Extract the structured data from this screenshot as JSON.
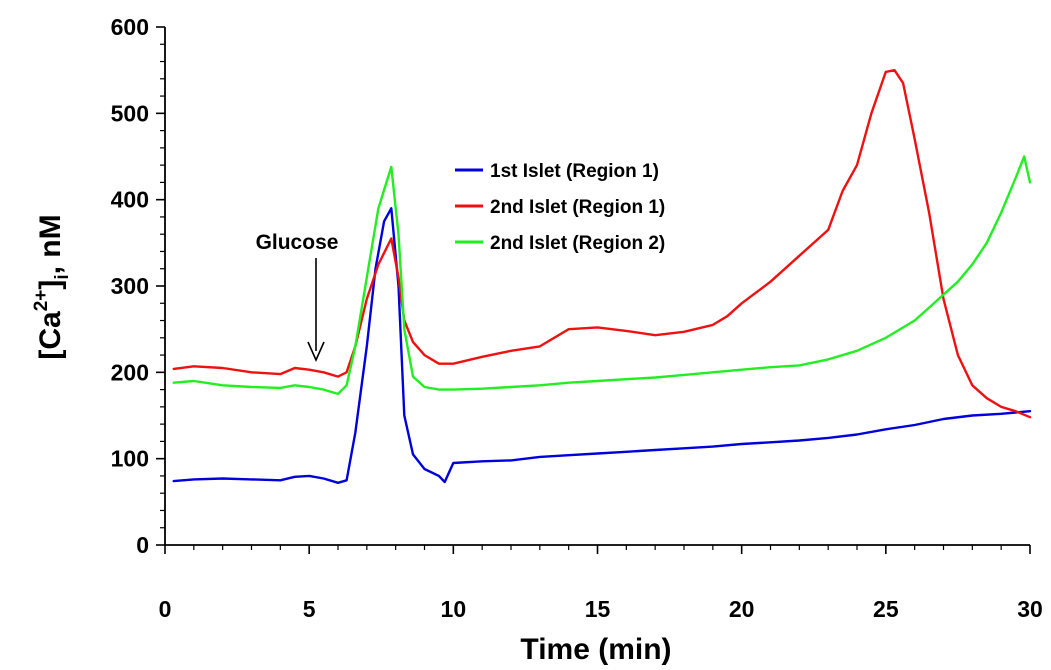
{
  "chart_data": {
    "type": "line",
    "xlabel": "Time (min)",
    "ylabel": {
      "prefix": "[Ca",
      "sup": "2+",
      "close": "]",
      "sub": "i",
      "suffix": ", nM"
    },
    "xlim": [
      0,
      30
    ],
    "ylim": [
      0,
      600
    ],
    "x_ticks": [
      "0",
      "5",
      "10",
      "15",
      "20",
      "25",
      "30"
    ],
    "y_ticks": [
      "0",
      "100",
      "200",
      "300",
      "400",
      "500",
      "600"
    ],
    "grid": false,
    "legend_position": "upper-center",
    "annotation": {
      "text": "Glucose",
      "x": 5.2,
      "y": 205
    },
    "series": [
      {
        "name": "1st Islet (Region 1)",
        "color": "#0000dd",
        "x": [
          0.3,
          1,
          2,
          3,
          4,
          4.5,
          5,
          5.5,
          6,
          6.3,
          6.6,
          7,
          7.3,
          7.6,
          7.85,
          8.1,
          8.3,
          8.6,
          9,
          9.5,
          9.7,
          10,
          11,
          12,
          13,
          14,
          15,
          16,
          17,
          18,
          19,
          20,
          21,
          22,
          23,
          24,
          25,
          26,
          27,
          28,
          29,
          30
        ],
        "y": [
          74,
          76,
          77,
          76,
          75,
          79,
          80,
          77,
          72,
          75,
          130,
          230,
          320,
          375,
          390,
          300,
          150,
          105,
          88,
          80,
          73,
          95,
          97,
          98,
          102,
          104,
          106,
          108,
          110,
          112,
          114,
          117,
          119,
          121,
          124,
          128,
          134,
          139,
          146,
          150,
          152,
          155
        ]
      },
      {
        "name": "2nd Islet (Region 1)",
        "color": "#ee1111",
        "x": [
          0.3,
          1,
          2,
          3,
          4,
          4.5,
          5,
          5.5,
          6,
          6.3,
          6.6,
          7,
          7.4,
          7.85,
          8.1,
          8.3,
          8.6,
          9,
          9.5,
          10,
          11,
          12,
          13,
          14,
          15,
          16,
          17,
          18,
          19,
          19.5,
          20,
          21,
          22,
          23,
          23.5,
          24,
          24.5,
          25,
          25.3,
          25.6,
          26,
          26.5,
          27,
          27.5,
          28,
          28.5,
          29,
          29.5,
          30
        ],
        "y": [
          204,
          207,
          205,
          200,
          198,
          205,
          203,
          200,
          195,
          200,
          230,
          285,
          325,
          355,
          310,
          260,
          235,
          220,
          210,
          210,
          218,
          225,
          230,
          250,
          252,
          248,
          243,
          247,
          255,
          265,
          280,
          305,
          335,
          365,
          410,
          440,
          500,
          548,
          550,
          535,
          470,
          385,
          285,
          220,
          185,
          170,
          160,
          155,
          148
        ]
      },
      {
        "name": "2nd Islet (Region 2)",
        "color": "#22ee22",
        "x": [
          0.3,
          1,
          2,
          3,
          4,
          4.5,
          5,
          5.5,
          6,
          6.3,
          6.6,
          7,
          7.4,
          7.85,
          8.1,
          8.3,
          8.6,
          9,
          9.5,
          10,
          11,
          12,
          13,
          14,
          15,
          16,
          17,
          18,
          19,
          20,
          21,
          22,
          23,
          24,
          25,
          26,
          26.5,
          27,
          27.5,
          28,
          28.5,
          29,
          29.5,
          29.8,
          30
        ],
        "y": [
          188,
          190,
          185,
          183,
          182,
          185,
          183,
          180,
          175,
          185,
          230,
          310,
          390,
          438,
          360,
          250,
          195,
          183,
          180,
          180,
          181,
          183,
          185,
          188,
          190,
          192,
          194,
          197,
          200,
          203,
          206,
          208,
          215,
          225,
          240,
          260,
          275,
          290,
          305,
          325,
          350,
          385,
          425,
          450,
          420
        ]
      }
    ]
  }
}
